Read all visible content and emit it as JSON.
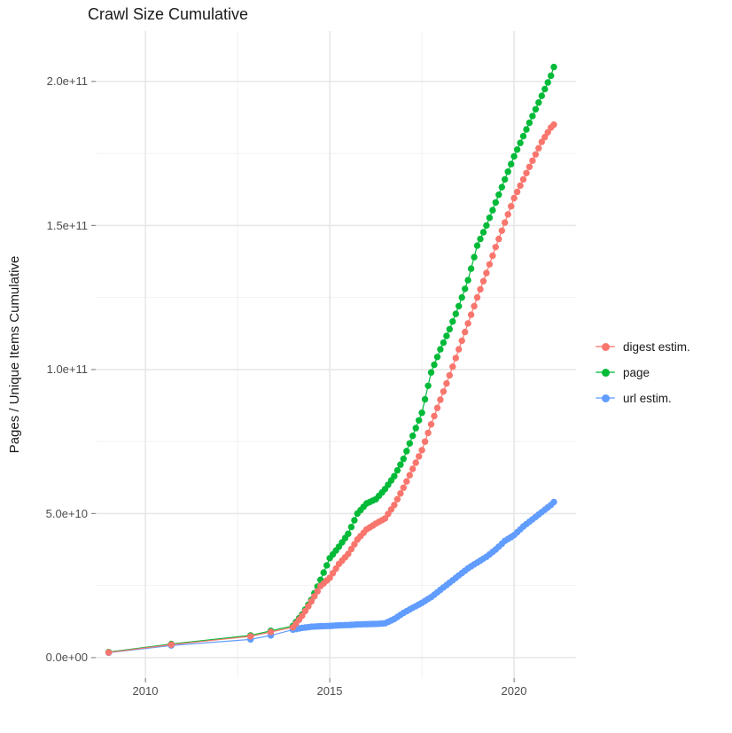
{
  "title": "Crawl Size Cumulative",
  "colors": {
    "background": "#ffffff",
    "grid_major": "#e7e7e7",
    "grid_minor": "#f2f2f2",
    "axis_tick": "#8a8a8a",
    "axis_text": "#4d4d4d",
    "text": "#1a1a1a",
    "series_digest": "#F8766D",
    "series_page": "#00BA38",
    "series_url": "#619CFF"
  },
  "chart_data": {
    "type": "scatter",
    "title": "Crawl Size Cumulative",
    "xlabel": "",
    "ylabel": "Pages / Unique Items Cumulative",
    "grid": true,
    "legend_position": "right",
    "xlim": [
      2008.65,
      2021.68
    ],
    "ylim": [
      -7100000000.0,
      217500000000.0
    ],
    "x_ticks": [
      {
        "value": 2010,
        "label": "2010"
      },
      {
        "value": 2015,
        "label": "2015"
      },
      {
        "value": 2020,
        "label": "2020"
      }
    ],
    "x_minor": [
      2012.5,
      2017.5
    ],
    "y_ticks": [
      {
        "value": 200000000000.0,
        "label": "2.0e+11"
      },
      {
        "value": 150000000000.0,
        "label": "1.5e+11"
      },
      {
        "value": 100000000000.0,
        "label": "1.0e+11"
      },
      {
        "value": 50000000000.0,
        "label": "5.0e+10"
      },
      {
        "value": 0,
        "label": "0.0e+00"
      }
    ],
    "y_minor": [
      25000000000.0,
      75000000000.0,
      125000000000.0,
      175000000000.0
    ],
    "series": [
      {
        "name": "digest estim.",
        "color": "#F8766D",
        "points": [
          [
            2009.0,
            1800000000.0
          ],
          [
            2010.7,
            4500000000.0
          ],
          [
            2012.85,
            7400000000.0
          ],
          [
            2013.4,
            8900000000.0
          ],
          [
            2014.0,
            10500000000.0
          ],
          [
            2014.25,
            14500000000.0
          ],
          [
            2014.5,
            19500000000.0
          ],
          [
            2014.75,
            24800000000.0
          ],
          [
            2015.0,
            27700000000.0
          ],
          [
            2015.25,
            32500000000.0
          ],
          [
            2015.5,
            36000000000.0
          ],
          [
            2015.75,
            41000000000.0
          ],
          [
            2016.0,
            44500000000.0
          ],
          [
            2016.25,
            46500000000.0
          ],
          [
            2016.5,
            48300000000.0
          ],
          [
            2016.75,
            53000000000.0
          ],
          [
            2017.0,
            59000000000.0
          ],
          [
            2017.25,
            65500000000.0
          ],
          [
            2017.5,
            72000000000.0
          ],
          [
            2017.75,
            81000000000.0
          ],
          [
            2018.0,
            89500000000.0
          ],
          [
            2018.25,
            98000000000.0
          ],
          [
            2018.5,
            107000000000.0
          ],
          [
            2018.75,
            116000000000.0
          ],
          [
            2019.0,
            125000000000.0
          ],
          [
            2019.25,
            133500000000.0
          ],
          [
            2019.5,
            142500000000.0
          ],
          [
            2019.75,
            151000000000.0
          ],
          [
            2020.0,
            159500000000.0
          ],
          [
            2020.25,
            166000000000.0
          ],
          [
            2020.5,
            172500000000.0
          ],
          [
            2020.75,
            179000000000.0
          ],
          [
            2021.0,
            184000000000.0
          ],
          [
            2021.08,
            185000000000.0
          ]
        ]
      },
      {
        "name": "page",
        "color": "#00BA38",
        "points": [
          [
            2009.0,
            1900000000.0
          ],
          [
            2010.7,
            4700000000.0
          ],
          [
            2012.85,
            7700000000.0
          ],
          [
            2013.4,
            9300000000.0
          ],
          [
            2014.0,
            11000000000.0
          ],
          [
            2014.25,
            15000000000.0
          ],
          [
            2014.5,
            20000000000.0
          ],
          [
            2014.75,
            27000000000.0
          ],
          [
            2015.0,
            34500000000.0
          ],
          [
            2015.25,
            38500000000.0
          ],
          [
            2015.5,
            43000000000.0
          ],
          [
            2015.75,
            50000000000.0
          ],
          [
            2016.0,
            53500000000.0
          ],
          [
            2016.25,
            55000000000.0
          ],
          [
            2016.5,
            58500000000.0
          ],
          [
            2016.75,
            63000000000.0
          ],
          [
            2017.0,
            69000000000.0
          ],
          [
            2017.25,
            77000000000.0
          ],
          [
            2017.5,
            85000000000.0
          ],
          [
            2017.75,
            99000000000.0
          ],
          [
            2018.0,
            107000000000.0
          ],
          [
            2018.25,
            114000000000.0
          ],
          [
            2018.5,
            122000000000.0
          ],
          [
            2018.75,
            131000000000.0
          ],
          [
            2019.0,
            143000000000.0
          ],
          [
            2019.25,
            150000000000.0
          ],
          [
            2019.5,
            158000000000.0
          ],
          [
            2019.75,
            166000000000.0
          ],
          [
            2020.0,
            174000000000.0
          ],
          [
            2020.25,
            181000000000.0
          ],
          [
            2020.5,
            188000000000.0
          ],
          [
            2020.75,
            195000000000.0
          ],
          [
            2021.0,
            202000000000.0
          ],
          [
            2021.08,
            205000000000.0
          ]
        ]
      },
      {
        "name": "url estim.",
        "color": "#619CFF",
        "points": [
          [
            2009.0,
            1700000000.0
          ],
          [
            2010.7,
            4200000000.0
          ],
          [
            2012.85,
            6300000000.0
          ],
          [
            2013.4,
            7700000000.0
          ],
          [
            2014.0,
            9700000000.0
          ],
          [
            2014.25,
            10300000000.0
          ],
          [
            2014.5,
            10700000000.0
          ],
          [
            2014.75,
            10900000000.0
          ],
          [
            2015.0,
            11000000000.0
          ],
          [
            2015.25,
            11200000000.0
          ],
          [
            2015.5,
            11300000000.0
          ],
          [
            2015.75,
            11500000000.0
          ],
          [
            2016.0,
            11600000000.0
          ],
          [
            2016.25,
            11700000000.0
          ],
          [
            2016.5,
            11900000000.0
          ],
          [
            2016.75,
            13400000000.0
          ],
          [
            2017.0,
            15500000000.0
          ],
          [
            2017.25,
            17300000000.0
          ],
          [
            2017.5,
            19000000000.0
          ],
          [
            2017.75,
            21000000000.0
          ],
          [
            2018.0,
            23500000000.0
          ],
          [
            2018.25,
            26000000000.0
          ],
          [
            2018.5,
            28500000000.0
          ],
          [
            2018.75,
            31000000000.0
          ],
          [
            2019.0,
            33000000000.0
          ],
          [
            2019.25,
            35000000000.0
          ],
          [
            2019.5,
            37500000000.0
          ],
          [
            2019.75,
            40500000000.0
          ],
          [
            2020.0,
            42500000000.0
          ],
          [
            2020.25,
            45500000000.0
          ],
          [
            2020.5,
            48000000000.0
          ],
          [
            2020.75,
            50500000000.0
          ],
          [
            2021.0,
            53000000000.0
          ],
          [
            2021.08,
            54000000000.0
          ]
        ]
      }
    ]
  }
}
